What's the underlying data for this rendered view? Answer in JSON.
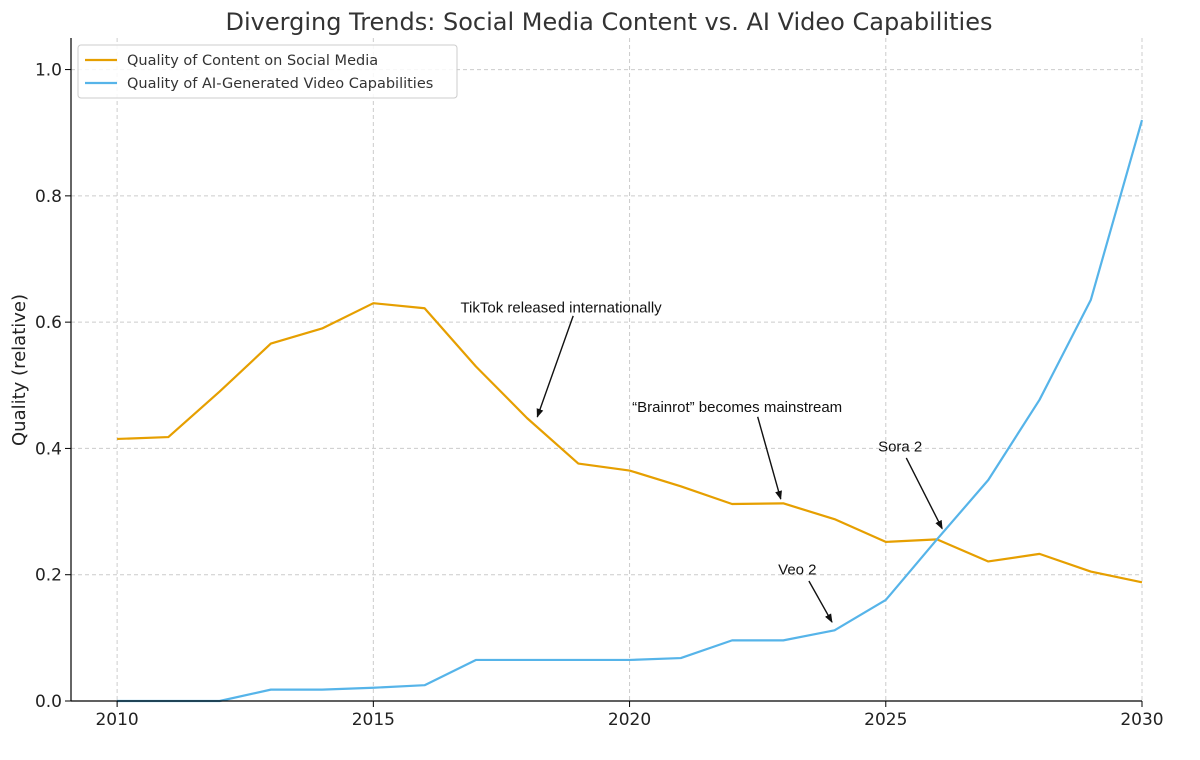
{
  "chart_data": {
    "type": "line",
    "title": "Diverging Trends: Social Media Content vs. AI Video Capabilities",
    "xlabel": "",
    "ylabel": "Quality (relative)",
    "xlim": [
      2009.1,
      2030
    ],
    "ylim": [
      0,
      1.05
    ],
    "xticks": [
      2010,
      2015,
      2020,
      2025,
      2030
    ],
    "yticks": [
      0.0,
      0.2,
      0.4,
      0.6,
      0.8,
      1.0
    ],
    "grid": true,
    "legend_position": "top-left",
    "x": [
      2010,
      2011,
      2012,
      2013,
      2014,
      2015,
      2016,
      2017,
      2018,
      2019,
      2020,
      2021,
      2022,
      2023,
      2024,
      2025,
      2026,
      2027,
      2028,
      2029,
      2030
    ],
    "series": [
      {
        "name": "Quality of Content on Social Media",
        "color": "#E69F00",
        "values": [
          0.415,
          0.418,
          0.49,
          0.566,
          0.59,
          0.63,
          0.622,
          0.53,
          0.448,
          0.376,
          0.365,
          0.34,
          0.312,
          0.313,
          0.288,
          0.252,
          0.256,
          0.221,
          0.233,
          0.205,
          0.188
        ]
      },
      {
        "name": "Quality of AI-Generated Video Capabilities",
        "color": "#56B4E9",
        "values": [
          0.0,
          0.0,
          0.0,
          0.018,
          0.018,
          0.021,
          0.025,
          0.065,
          0.065,
          0.065,
          0.065,
          0.068,
          0.096,
          0.096,
          0.112,
          0.16,
          0.256,
          0.35,
          0.477,
          0.635,
          0.92
        ]
      }
    ],
    "annotations": [
      {
        "text": "TikTok released internationally",
        "text_x": 2016.7,
        "text_y": 0.615,
        "point_x": 2018.2,
        "point_y": 0.45,
        "tail_x": 2018.9,
        "tail_y": 0.61
      },
      {
        "text": "“Brainrot” becomes mainstream",
        "text_x": 2020.05,
        "text_y": 0.458,
        "point_x": 2022.95,
        "point_y": 0.32,
        "tail_x": 2022.5,
        "tail_y": 0.45
      },
      {
        "text": "Sora 2",
        "text_x": 2024.85,
        "text_y": 0.395,
        "point_x": 2026.1,
        "point_y": 0.273,
        "tail_x": 2025.4,
        "tail_y": 0.385
      },
      {
        "text": "Veo 2",
        "text_x": 2022.9,
        "text_y": 0.2,
        "point_x": 2023.95,
        "point_y": 0.125,
        "tail_x": 2023.5,
        "tail_y": 0.19
      }
    ]
  }
}
